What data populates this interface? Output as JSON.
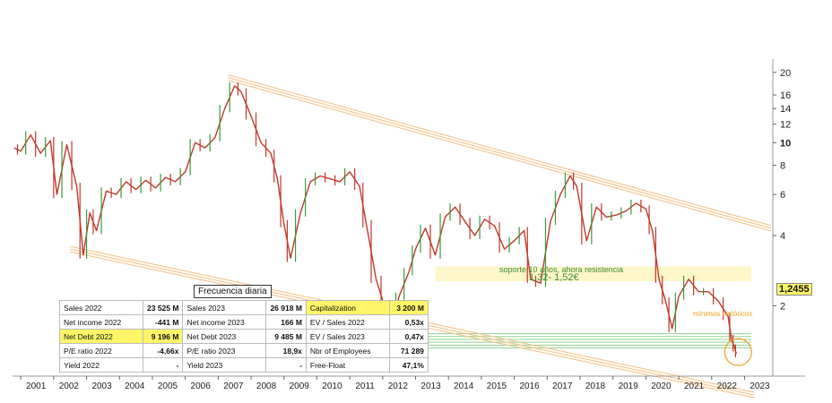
{
  "chart_data": {
    "type": "line",
    "frequency_label": "Frecuencia diaria",
    "y_scale": "log",
    "ylim": [
      1.0,
      22
    ],
    "xlim": [
      2000.75,
      2023.75
    ],
    "y_ticks": [
      {
        "value": 20,
        "label": "20",
        "bold": false
      },
      {
        "value": 16,
        "label": "16",
        "bold": false
      },
      {
        "value": 14,
        "label": "14",
        "bold": false
      },
      {
        "value": 12,
        "label": "12",
        "bold": false
      },
      {
        "value": 10,
        "label": "10",
        "bold": true
      },
      {
        "value": 8,
        "label": "8",
        "bold": false
      },
      {
        "value": 6,
        "label": "6",
        "bold": false
      },
      {
        "value": 4,
        "label": "4",
        "bold": false
      },
      {
        "value": 2,
        "label": "2",
        "bold": false
      }
    ],
    "x_ticks": [
      "2001",
      "2002",
      "2003",
      "2004",
      "2005",
      "2006",
      "2007",
      "2008",
      "2009",
      "2010",
      "2011",
      "2012",
      "2013",
      "2014",
      "2015",
      "2016",
      "2017",
      "2018",
      "2019",
      "2020",
      "2021",
      "2022",
      "2023"
    ],
    "price_series": {
      "x": [
        2000.8,
        2001.0,
        2001.3,
        2001.6,
        2001.9,
        2002.1,
        2002.4,
        2002.7,
        2002.9,
        2003.1,
        2003.3,
        2003.6,
        2003.9,
        2004.2,
        2004.5,
        2004.8,
        2005.1,
        2005.4,
        2005.7,
        2006.0,
        2006.3,
        2006.6,
        2006.9,
        2007.2,
        2007.5,
        2007.7,
        2008.0,
        2008.3,
        2008.6,
        2008.8,
        2009.0,
        2009.2,
        2009.5,
        2009.8,
        2010.1,
        2010.4,
        2010.7,
        2011.0,
        2011.3,
        2011.5,
        2011.8,
        2012.1,
        2012.3,
        2012.5,
        2012.8,
        2013.0,
        2013.3,
        2013.6,
        2013.9,
        2014.2,
        2014.5,
        2014.8,
        2015.1,
        2015.4,
        2015.7,
        2016.0,
        2016.3,
        2016.5,
        2016.8,
        2017.1,
        2017.4,
        2017.7,
        2017.9,
        2018.2,
        2018.5,
        2018.8,
        2019.1,
        2019.4,
        2019.7,
        2020.0,
        2020.2,
        2020.4,
        2020.6,
        2020.8,
        2021.0,
        2021.3,
        2021.6,
        2021.9,
        2022.2,
        2022.5,
        2022.6,
        2022.7,
        2022.75
      ],
      "y": [
        9.5,
        9.2,
        10.8,
        9.0,
        10.2,
        6.0,
        9.8,
        6.5,
        3.3,
        5.0,
        4.2,
        6.2,
        6.0,
        6.8,
        6.3,
        6.9,
        6.4,
        7.1,
        6.8,
        7.5,
        10.0,
        9.5,
        10.5,
        14.0,
        17.5,
        16.5,
        13.0,
        10.0,
        9.0,
        7.0,
        4.5,
        3.2,
        5.0,
        6.8,
        7.2,
        7.0,
        6.8,
        7.5,
        6.5,
        4.5,
        2.6,
        1.9,
        1.7,
        2.2,
        2.8,
        3.5,
        4.3,
        3.3,
        4.8,
        5.3,
        4.6,
        4.0,
        4.7,
        4.4,
        3.5,
        3.8,
        4.2,
        2.6,
        2.5,
        4.6,
        6.0,
        7.2,
        6.5,
        3.8,
        5.3,
        4.8,
        4.9,
        5.1,
        5.5,
        5.2,
        4.2,
        2.6,
        2.1,
        1.6,
        2.2,
        2.6,
        2.3,
        2.3,
        2.1,
        1.8,
        1.45,
        1.32,
        1.2455
      ]
    },
    "channel_upper": {
      "x": [
        2007.3,
        2023.8
      ],
      "y": [
        19.0,
        4.3
      ]
    },
    "channel_lower": {
      "x": [
        2002.5,
        2023.3
      ],
      "y": [
        3.5,
        0.83
      ]
    },
    "resistance_zone": {
      "x": [
        2013.6,
        2023.2
      ],
      "y_low": 2.55,
      "y_high": 2.95
    },
    "support_zone": {
      "x": [
        2011.0,
        2023.2
      ],
      "y_low": 1.32,
      "y_high": 1.52
    },
    "last_price": 1.2455,
    "last_price_label": "1,2455",
    "annotations": {
      "support_text": "soporte 10 años, ahora resistencia",
      "range_text": "1,32- 1,52€",
      "min_text": "mínimos históricos"
    },
    "colors": {
      "candles_up": "#3a9a3a",
      "candles_down": "#c0392b",
      "channel": "#f5c38a",
      "resistance_zone": "#fdf6c8",
      "support_lines": "#8fd18f",
      "min_circle": "#f0a020",
      "highlight": "#fff568"
    }
  },
  "fundamentals": {
    "rows": [
      [
        {
          "label": "Sales 2022",
          "value": "23 525 M"
        },
        {
          "label": "Sales 2023",
          "value": "26 918 M"
        },
        {
          "label": "Capitalization",
          "value": "3 200 M",
          "highlight": true
        }
      ],
      [
        {
          "label": "Net income 2022",
          "value": "-441 M"
        },
        {
          "label": "Net income 2023",
          "value": "166 M"
        },
        {
          "label": "EV / Sales 2022",
          "value": "0,53x"
        }
      ],
      [
        {
          "label": "Net Debt 2022",
          "value": "9 196 M",
          "highlight": true
        },
        {
          "label": "Net Debt 2023",
          "value": "9 485 M"
        },
        {
          "label": "EV / Sales 2023",
          "value": "0,47x"
        }
      ],
      [
        {
          "label": "P/E ratio 2022",
          "value": "-4,66x"
        },
        {
          "label": "P/E ratio 2023",
          "value": "18,9x"
        },
        {
          "label": "Nbr of Employees",
          "value": "71 289"
        }
      ],
      [
        {
          "label": "Yield 2022",
          "value": "-"
        },
        {
          "label": "Yield 2023",
          "value": "-"
        },
        {
          "label": "Free-Float",
          "value": "47,1%"
        }
      ]
    ]
  }
}
